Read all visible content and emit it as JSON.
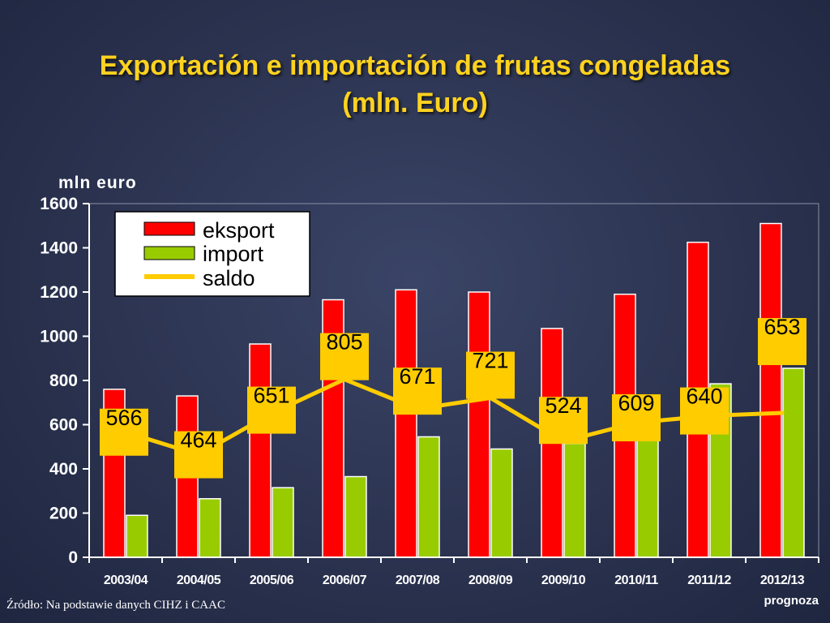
{
  "slide": {
    "title_line1": "Exportación e importación de frutas congeladas",
    "title_line2": "(mln. Euro)",
    "source": "Źródło: Na podstawie danych CIHZ i CAAC",
    "note": "prognoza"
  },
  "chart_data": {
    "type": "bar",
    "ylabel": "mln euro",
    "xlabel": "",
    "ylim": [
      0,
      1600
    ],
    "yticks": [
      0,
      200,
      400,
      600,
      800,
      1000,
      1200,
      1400,
      1600
    ],
    "categories": [
      "2003/04",
      "2004/05",
      "2005/06",
      "2006/07",
      "2007/08",
      "2008/09",
      "2009/10",
      "2010/11",
      "2011/12",
      "2012/13"
    ],
    "series": [
      {
        "name": "eksport",
        "type": "bar",
        "color": "#ff0000",
        "values": [
          760,
          730,
          965,
          1165,
          1210,
          1200,
          1035,
          1190,
          1425,
          1510
        ]
      },
      {
        "name": "import",
        "type": "bar",
        "color": "#99cc00",
        "values": [
          190,
          265,
          315,
          365,
          545,
          490,
          515,
          590,
          785,
          855
        ]
      },
      {
        "name": "saldo",
        "type": "line",
        "color": "#ffcc00",
        "values": [
          566,
          464,
          651,
          805,
          671,
          721,
          524,
          609,
          640,
          653
        ]
      }
    ],
    "data_labels": [
      "566",
      "464",
      "651",
      "805",
      "671",
      "721",
      "524",
      "609",
      "640",
      "653"
    ],
    "legend": {
      "position": "top-left"
    },
    "grid": false
  }
}
